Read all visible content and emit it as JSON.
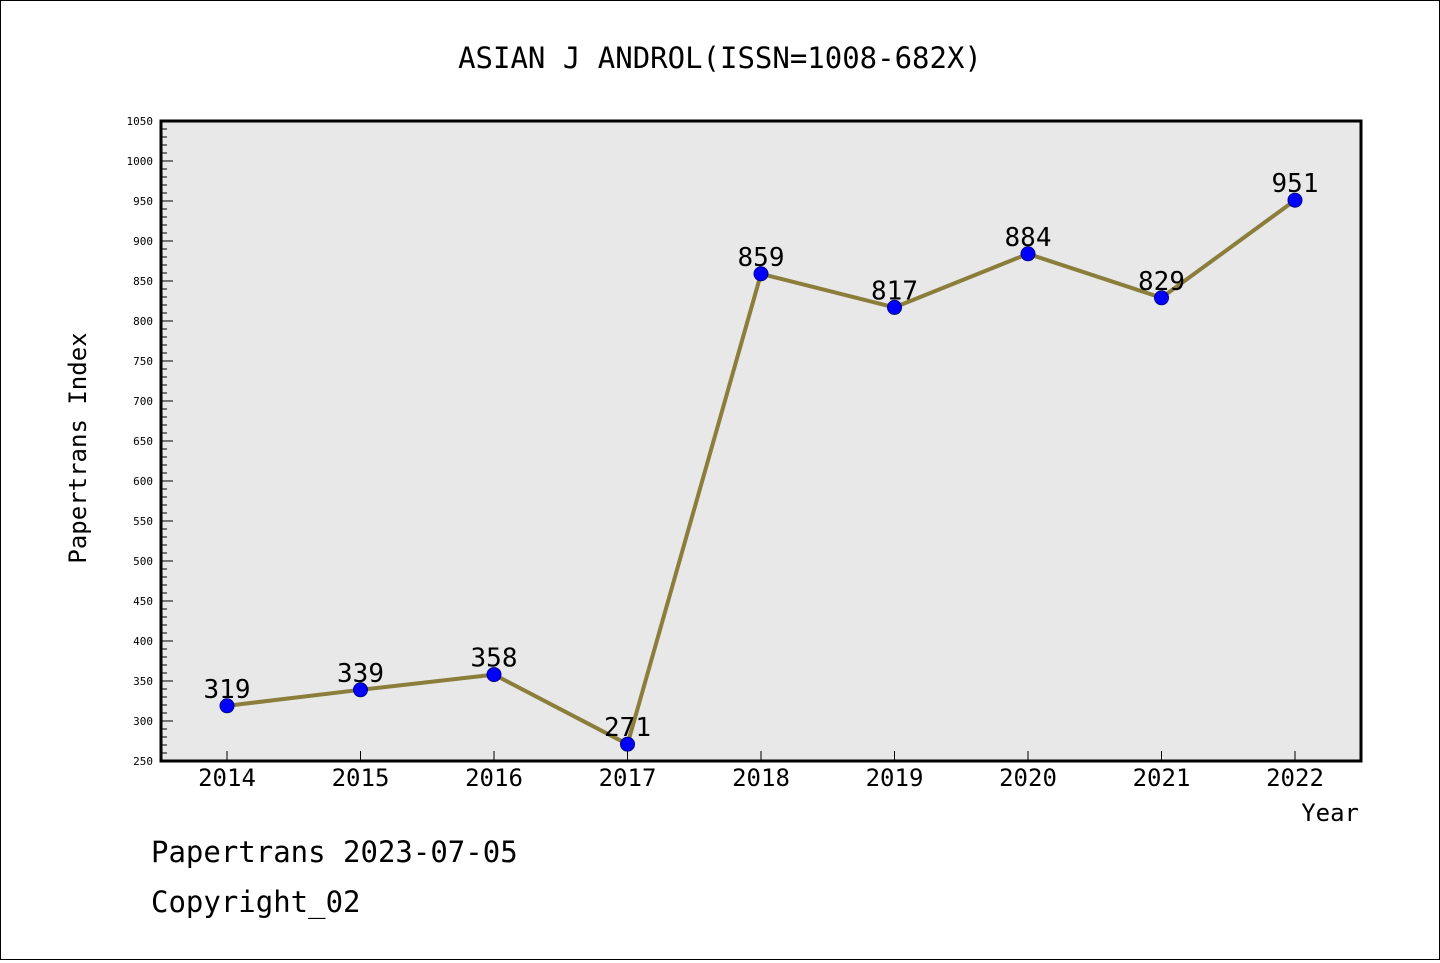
{
  "chart_data": {
    "type": "line",
    "title": "ASIAN J ANDROL(ISSN=1008-682X)",
    "xlabel": "Year",
    "ylabel": "Papertrans Index",
    "categories": [
      "2014",
      "2015",
      "2016",
      "2017",
      "2018",
      "2019",
      "2020",
      "2021",
      "2022"
    ],
    "series": [
      {
        "values": [
          319,
          339,
          358,
          271,
          859,
          817,
          884,
          829,
          951
        ]
      }
    ],
    "data_labels": [
      "319",
      "339",
      "358",
      "271",
      "859",
      "817",
      "884",
      "829",
      "951"
    ],
    "ylim": [
      250,
      1050
    ],
    "y_ticks": [
      250,
      300,
      350,
      400,
      450,
      500,
      550,
      600,
      650,
      700,
      750,
      800,
      850,
      900,
      950,
      1000,
      1050
    ],
    "y_tick_labels": [
      "250",
      "300",
      "350",
      "400",
      "450",
      "500",
      "550",
      "600",
      "650",
      "700",
      "750",
      "800",
      "850",
      "900",
      "950",
      "1000",
      "1050"
    ],
    "y_minor_step": 10,
    "grid": false,
    "legend": "none",
    "colors": {
      "line": "#8B7D3A",
      "marker": "#0000FF",
      "marker_edge": "#00008B",
      "plot_background": "#E8E8E8"
    }
  },
  "footer": {
    "line1": "Papertrans 2023-07-05",
    "line2": "Copyright_02"
  }
}
